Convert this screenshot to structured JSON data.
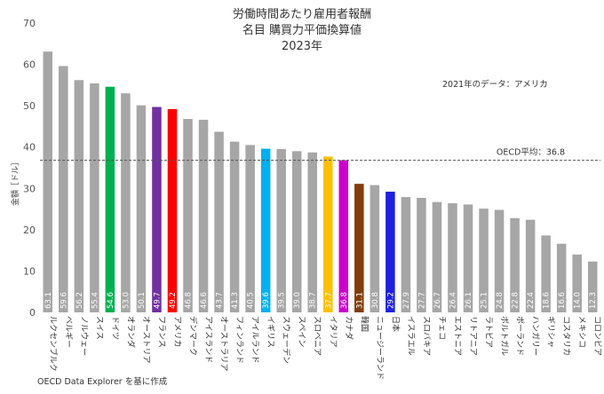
{
  "chart_data": {
    "type": "bar",
    "title_lines": [
      "労働時間あたり雇用者報酬",
      "名目 購買力平価換算値",
      "2023年"
    ],
    "ylabel": "金額［ドル］",
    "ylim": [
      0,
      70
    ],
    "yticks": [
      0,
      10,
      20,
      30,
      40,
      50,
      60,
      70
    ],
    "grid": false,
    "note": "2021年のデータ：アメリカ",
    "reference_line": {
      "label": "OECD平均：36.8",
      "value": 36.8
    },
    "source": "OECD Data Explorer を基に作成",
    "categories": [
      "ルクセンブルク",
      "ベルギー",
      "ノルウェー",
      "スイス",
      "ドイツ",
      "オランダ",
      "オーストリア",
      "フランス",
      "アメリカ",
      "デンマーク",
      "アイスランド",
      "オーストラリア",
      "フィンランド",
      "アイルランド",
      "イギリス",
      "スウェーデン",
      "スペイン",
      "スロベニア",
      "イタリア",
      "カナダ",
      "韓国",
      "ニュージーランド",
      "日本",
      "イスラエル",
      "スロバキア",
      "チェコ",
      "エストニア",
      "リトアニア",
      "ラトビア",
      "ポルトガル",
      "ポーランド",
      "ハンガリー",
      "ギリシャ",
      "コスタリカ",
      "メキシコ",
      "コロンビア"
    ],
    "value_labels": [
      "63.1",
      "59.6",
      "56.2",
      "55.4",
      "54.6",
      "53.0",
      "50.1",
      "49.7",
      "49.2",
      "46.8",
      "46.6",
      "43.7",
      "41.3",
      "40.5",
      "39.6",
      "39.5",
      "39.0",
      "38.7",
      "37.7",
      "36.8",
      "31.1",
      "30.8",
      "29.2",
      "27.9",
      "27.7",
      "26.7",
      "26.4",
      "26.1",
      "25.1",
      "24.8",
      "22.8",
      "22.4",
      "18.6",
      "16.6",
      "14.0",
      "12.3"
    ],
    "values": [
      63.1,
      59.6,
      56.2,
      55.4,
      54.6,
      53.0,
      50.1,
      49.7,
      49.2,
      46.8,
      46.6,
      43.7,
      41.3,
      40.5,
      39.6,
      39.5,
      39.0,
      38.7,
      37.7,
      36.8,
      31.1,
      30.8,
      29.2,
      27.9,
      27.7,
      26.7,
      26.4,
      26.1,
      25.1,
      24.8,
      22.8,
      22.4,
      18.6,
      16.6,
      14.0,
      12.3
    ],
    "colors": [
      "#a6a6a6",
      "#a6a6a6",
      "#a6a6a6",
      "#a6a6a6",
      "#00b050",
      "#a6a6a6",
      "#a6a6a6",
      "#7030a0",
      "#ff0000",
      "#a6a6a6",
      "#a6a6a6",
      "#a6a6a6",
      "#a6a6a6",
      "#a6a6a6",
      "#00b0f0",
      "#a6a6a6",
      "#a6a6a6",
      "#a6a6a6",
      "#ffc000",
      "#cc00cc",
      "#833c0b",
      "#a6a6a6",
      "#1f1fe0",
      "#a6a6a6",
      "#a6a6a6",
      "#a6a6a6",
      "#a6a6a6",
      "#a6a6a6",
      "#a6a6a6",
      "#a6a6a6",
      "#a6a6a6",
      "#a6a6a6",
      "#a6a6a6",
      "#a6a6a6",
      "#a6a6a6",
      "#a6a6a6"
    ]
  }
}
